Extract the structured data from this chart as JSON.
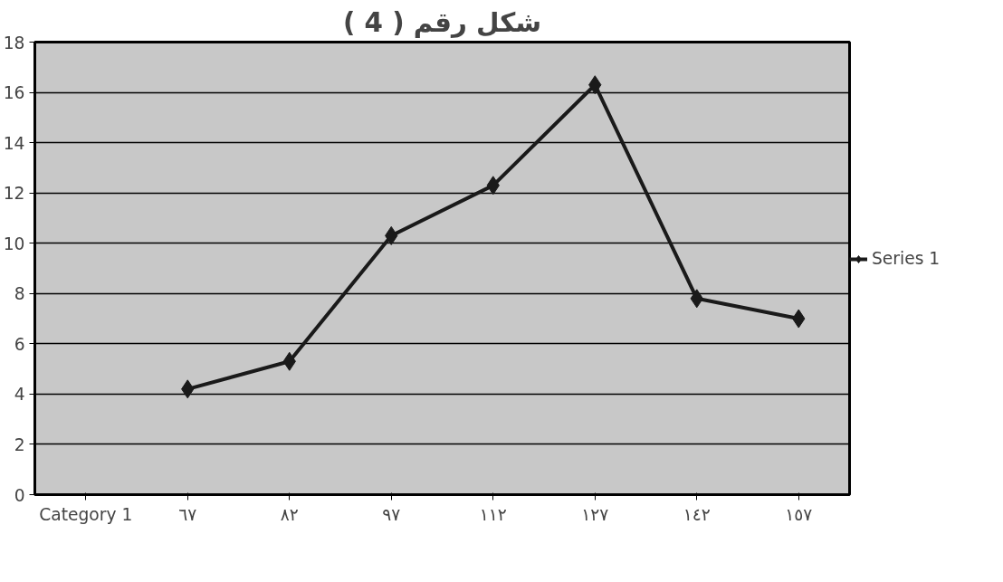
{
  "chart_data": {
    "type": "line",
    "title": "شكل رقم ( 4 )",
    "categories": [
      "Category 1",
      "٦٧",
      "٨٢",
      "٩٧",
      "١١٢",
      "١٢٧",
      "١٤٢",
      "١٥٧"
    ],
    "series": [
      {
        "name": "Series 1",
        "color": "#1a1a1a",
        "values": [
          null,
          4.2,
          5.3,
          10.3,
          12.3,
          16.3,
          7.8,
          7.0
        ]
      }
    ],
    "ylim": [
      0,
      18
    ],
    "yticks": [
      0,
      2,
      4,
      6,
      8,
      10,
      12,
      14,
      16,
      18
    ],
    "grid": "y",
    "legend": "right",
    "marker": "diamond",
    "line_style": "solid"
  }
}
